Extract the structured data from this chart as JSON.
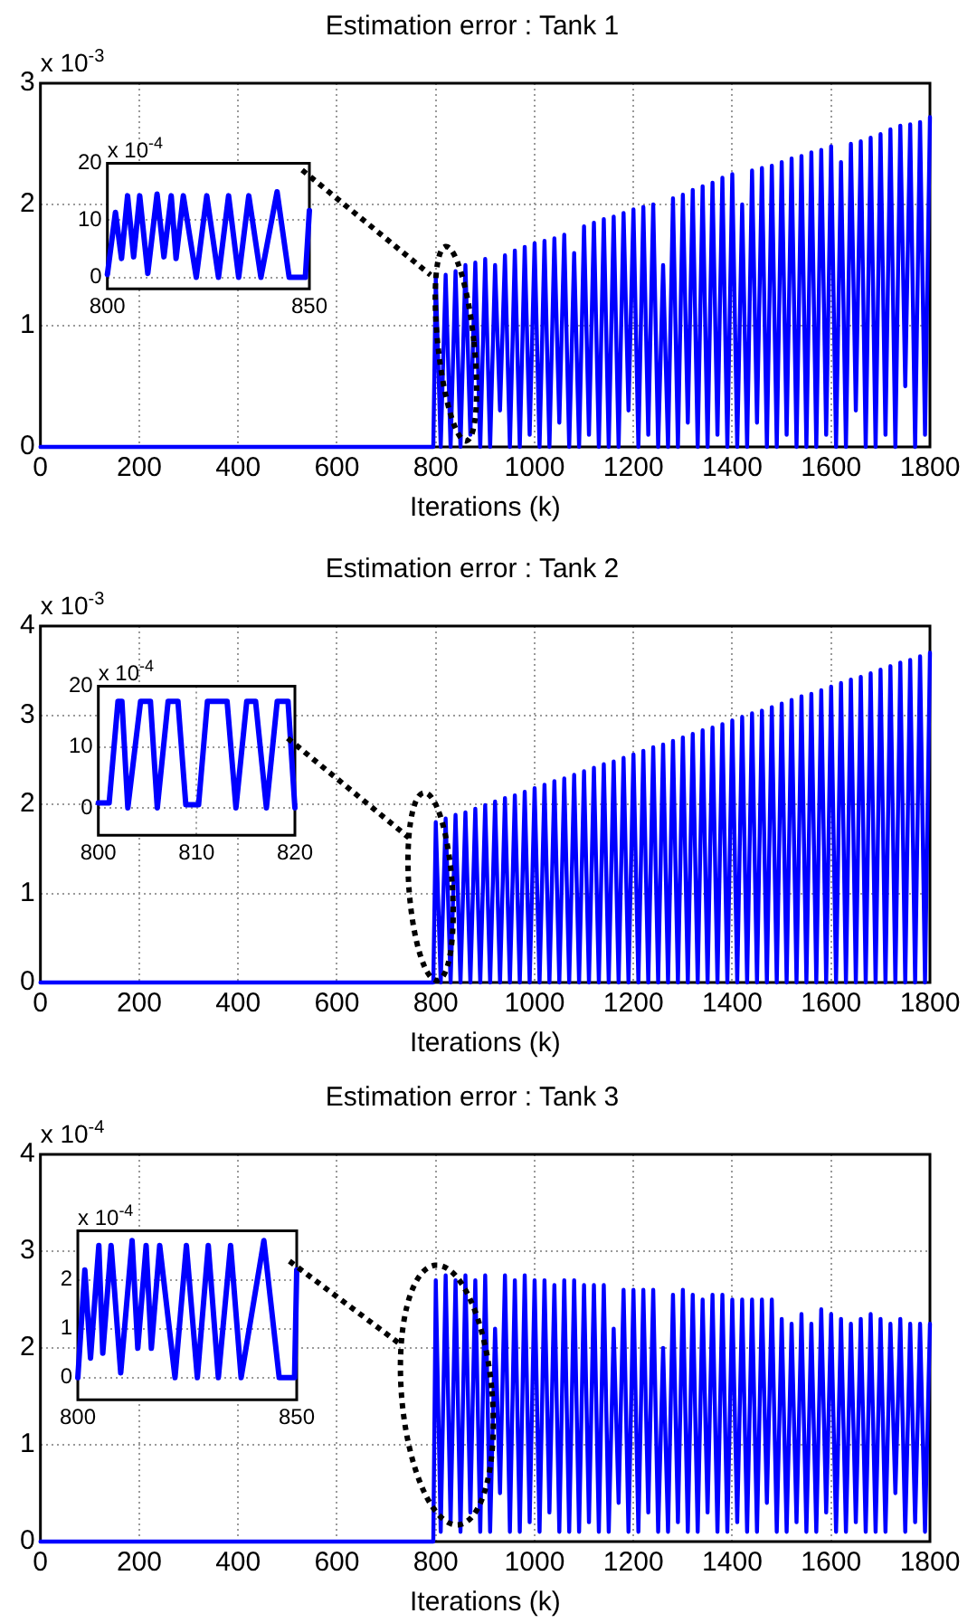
{
  "chart_data": [
    {
      "type": "line",
      "title": "Estimation error : Tank 1",
      "xlabel": "Iterations (k)",
      "annotations": [
        "x 10$^{-3}$"
      ],
      "xlim": [
        0,
        1800
      ],
      "xticks": [
        0,
        200,
        400,
        600,
        800,
        1000,
        1200,
        1400,
        1600,
        1800
      ],
      "ylim": [
        0,
        3
      ],
      "yticks": [
        0,
        1,
        2,
        3
      ],
      "grid": true,
      "x": [
        0,
        795,
        800,
        810,
        820,
        830,
        840,
        850,
        860,
        870,
        880,
        890,
        900,
        910,
        920,
        930,
        940,
        950,
        960,
        970,
        980,
        990,
        1000,
        1010,
        1020,
        1030,
        1040,
        1050,
        1060,
        1070,
        1080,
        1090,
        1100,
        1110,
        1120,
        1130,
        1140,
        1150,
        1160,
        1170,
        1180,
        1190,
        1200,
        1210,
        1220,
        1230,
        1240,
        1250,
        1260,
        1270,
        1280,
        1290,
        1300,
        1310,
        1320,
        1330,
        1340,
        1350,
        1360,
        1370,
        1380,
        1390,
        1400,
        1410,
        1420,
        1430,
        1440,
        1450,
        1460,
        1470,
        1480,
        1490,
        1500,
        1510,
        1520,
        1530,
        1540,
        1550,
        1560,
        1570,
        1580,
        1590,
        1600,
        1610,
        1620,
        1630,
        1640,
        1650,
        1660,
        1670,
        1680,
        1690,
        1700,
        1710,
        1720,
        1730,
        1740,
        1750,
        1760,
        1770,
        1780,
        1790,
        1800
      ],
      "series": [
        {
          "color": "#0000ff",
          "values": [
            0,
            0,
            1.4,
            0,
            1.42,
            0,
            1.45,
            0,
            1.5,
            0.1,
            1.52,
            0,
            1.55,
            0,
            1.5,
            0.3,
            1.58,
            0,
            1.62,
            0,
            1.65,
            0.1,
            1.68,
            0,
            1.7,
            0,
            1.72,
            0.2,
            1.75,
            0,
            1.6,
            0,
            1.82,
            0.1,
            1.85,
            0,
            1.88,
            0,
            1.9,
            0,
            1.93,
            0.3,
            1.96,
            0,
            1.98,
            0.1,
            2,
            0,
            1.5,
            0,
            2.05,
            0,
            2.08,
            0.2,
            2.12,
            0,
            2.15,
            0,
            2.18,
            0.1,
            2.22,
            0,
            2.25,
            0,
            2,
            0,
            2.28,
            0.2,
            2.3,
            0,
            2.32,
            0,
            2.35,
            0.1,
            2.38,
            0,
            2.4,
            0,
            2.43,
            0,
            2.45,
            0.1,
            2.48,
            0,
            2.35,
            0,
            2.5,
            0.3,
            2.52,
            0,
            2.55,
            0,
            2.58,
            0.1,
            2.62,
            0,
            2.65,
            0.5,
            2.66,
            0,
            2.68,
            0.1,
            2.72
          ]
        }
      ]
    },
    {
      "type": "line",
      "annotations": [
        "x 10$^{-4}$"
      ],
      "xlim": [
        800,
        850
      ],
      "xticks": [
        800,
        850
      ],
      "ylim": [
        -2,
        20
      ],
      "yticks": [
        0,
        10,
        20
      ],
      "grid": true,
      "x": [
        800,
        802,
        803.5,
        805,
        806.5,
        808,
        810,
        812.3,
        814,
        815.8,
        817,
        818.8,
        822,
        824.6,
        827.5,
        830,
        832.5,
        835,
        838,
        842,
        845,
        849,
        850
      ],
      "series": [
        {
          "color": "#0000ff",
          "values": [
            0.5,
            11.4,
            3.3,
            14.3,
            3.6,
            14.3,
            0.7,
            14.6,
            3.6,
            14.3,
            3.3,
            14.3,
            0,
            14.3,
            0,
            14.3,
            0,
            14.3,
            0,
            15,
            0,
            0,
            11.7
          ]
        }
      ]
    },
    {
      "type": "line",
      "title": "Estimation error : Tank 2",
      "xlabel": "Iterations (k)",
      "annotations": [
        "x 10$^{-3}$"
      ],
      "xlim": [
        0,
        1800
      ],
      "xticks": [
        0,
        200,
        400,
        600,
        800,
        1000,
        1200,
        1400,
        1600,
        1800
      ],
      "ylim": [
        0,
        4
      ],
      "yticks": [
        0,
        1,
        2,
        3,
        4
      ],
      "grid": true,
      "x": [
        0,
        795,
        800,
        810,
        820,
        830,
        840,
        850,
        860,
        870,
        880,
        890,
        900,
        910,
        920,
        930,
        940,
        950,
        960,
        970,
        980,
        990,
        1000,
        1010,
        1020,
        1030,
        1040,
        1050,
        1060,
        1070,
        1080,
        1090,
        1100,
        1110,
        1120,
        1130,
        1140,
        1150,
        1160,
        1170,
        1180,
        1190,
        1200,
        1210,
        1220,
        1230,
        1240,
        1250,
        1260,
        1270,
        1280,
        1290,
        1300,
        1310,
        1320,
        1330,
        1340,
        1350,
        1360,
        1370,
        1380,
        1390,
        1400,
        1410,
        1420,
        1430,
        1440,
        1450,
        1460,
        1470,
        1480,
        1490,
        1500,
        1510,
        1520,
        1530,
        1540,
        1550,
        1560,
        1570,
        1580,
        1590,
        1600,
        1610,
        1620,
        1630,
        1640,
        1650,
        1660,
        1670,
        1680,
        1690,
        1700,
        1710,
        1720,
        1730,
        1740,
        1750,
        1760,
        1770,
        1780,
        1790,
        1800
      ],
      "series": [
        {
          "color": "#0000ff",
          "values": [
            0,
            0,
            1.8,
            0,
            1.84,
            0,
            1.88,
            0,
            1.91,
            0,
            1.95,
            0,
            1.99,
            0,
            2.03,
            0,
            2.07,
            0,
            2.1,
            0,
            2.14,
            0,
            2.18,
            0,
            2.22,
            0,
            2.26,
            0,
            2.29,
            0,
            2.33,
            0,
            2.37,
            0,
            2.41,
            0,
            2.45,
            0,
            2.48,
            0,
            2.52,
            0,
            2.56,
            0,
            2.6,
            0,
            2.64,
            0,
            2.67,
            0,
            2.71,
            0,
            2.75,
            0,
            2.79,
            0,
            2.83,
            0,
            2.86,
            0,
            2.9,
            0,
            2.94,
            0,
            2.98,
            0,
            3.02,
            0,
            3.05,
            0,
            3.09,
            0,
            3.13,
            0,
            3.17,
            0,
            3.21,
            0,
            3.24,
            0,
            3.28,
            0,
            3.32,
            0,
            3.36,
            0,
            3.4,
            0,
            3.43,
            0,
            3.47,
            0,
            3.51,
            0,
            3.55,
            0,
            3.59,
            0,
            3.62,
            0,
            3.66,
            0,
            3.7
          ]
        }
      ]
    },
    {
      "type": "line",
      "annotations": [
        "x 10$^{-4}$"
      ],
      "xlim": [
        800,
        820
      ],
      "xticks": [
        800,
        810,
        820
      ],
      "ylim": [
        -4.5,
        20
      ],
      "yticks": [
        0,
        10,
        20
      ],
      "grid": true,
      "x": [
        800,
        801.1,
        802,
        802.4,
        803,
        804.3,
        805.3,
        806,
        807.1,
        808.1,
        808.9,
        810.2,
        811.1,
        813.1,
        814,
        815.1,
        816,
        817.1,
        818.2,
        819.3,
        820
      ],
      "series": [
        {
          "color": "#0000ff",
          "values": [
            0.8,
            0.8,
            17.5,
            17.5,
            0,
            17.5,
            17.5,
            0,
            17.5,
            17.5,
            0.5,
            0.5,
            17.5,
            17.5,
            0,
            17.5,
            17.5,
            0,
            17.5,
            17.5,
            0
          ]
        }
      ]
    },
    {
      "type": "line",
      "title": "Estimation error : Tank 3",
      "xlabel": "Iterations (k)",
      "annotations": [
        "x 10$^{-4}$"
      ],
      "xlim": [
        0,
        1800
      ],
      "xticks": [
        0,
        200,
        400,
        600,
        800,
        1000,
        1200,
        1400,
        1600,
        1800
      ],
      "ylim": [
        0,
        4
      ],
      "yticks": [
        0,
        1,
        2,
        3,
        4
      ],
      "grid": true,
      "x": [
        0,
        795,
        800,
        810,
        820,
        830,
        840,
        850,
        860,
        870,
        880,
        890,
        900,
        910,
        920,
        930,
        940,
        950,
        960,
        970,
        980,
        990,
        1000,
        1010,
        1020,
        1030,
        1040,
        1050,
        1060,
        1070,
        1080,
        1090,
        1100,
        1110,
        1120,
        1130,
        1140,
        1150,
        1160,
        1170,
        1180,
        1190,
        1200,
        1210,
        1220,
        1230,
        1240,
        1250,
        1260,
        1270,
        1280,
        1290,
        1300,
        1310,
        1320,
        1330,
        1340,
        1350,
        1360,
        1370,
        1380,
        1390,
        1400,
        1410,
        1420,
        1430,
        1440,
        1450,
        1460,
        1470,
        1480,
        1490,
        1500,
        1510,
        1520,
        1530,
        1540,
        1550,
        1560,
        1570,
        1580,
        1590,
        1600,
        1610,
        1620,
        1630,
        1640,
        1650,
        1660,
        1670,
        1680,
        1690,
        1700,
        1710,
        1720,
        1730,
        1740,
        1750,
        1760,
        1770,
        1780,
        1790,
        1800
      ],
      "series": [
        {
          "color": "#0000ff",
          "values": [
            0,
            0,
            2.7,
            0.1,
            2.75,
            0.2,
            2.7,
            0.1,
            2.75,
            0.3,
            2.7,
            0.1,
            2.75,
            0.1,
            2.2,
            0.5,
            2.75,
            0.1,
            2.7,
            0.1,
            2.75,
            0.2,
            2.7,
            0.1,
            2.7,
            0.3,
            2.65,
            0.1,
            2.7,
            0.1,
            2.7,
            0.1,
            2.65,
            0.2,
            2.65,
            0.1,
            2.65,
            0.1,
            2.2,
            0.4,
            2.6,
            0.1,
            2.6,
            0.1,
            2.6,
            0.3,
            2.6,
            0.1,
            2,
            0.1,
            2.55,
            0.2,
            2.6,
            0.1,
            2.55,
            0.1,
            2.5,
            0.3,
            2.55,
            0.1,
            2.55,
            0.1,
            2.5,
            0.2,
            2.5,
            0.1,
            2.5,
            0.1,
            2.5,
            0.4,
            2.5,
            0.1,
            2.3,
            0.1,
            2.25,
            0.2,
            2.35,
            0.1,
            2.25,
            0.1,
            2.4,
            0.3,
            2.35,
            0.1,
            2.3,
            0.1,
            2.25,
            0.2,
            2.3,
            0.1,
            2.35,
            0.1,
            2.3,
            0.1,
            2.25,
            0.5,
            2.3,
            0.1,
            2.25,
            0.2,
            2.25,
            0.1,
            2.25
          ]
        }
      ]
    },
    {
      "type": "line",
      "annotations": [
        "x 10$^{-4}$"
      ],
      "xlim": [
        800,
        850
      ],
      "xticks": [
        800,
        850
      ],
      "ylim": [
        -0.45,
        3
      ],
      "yticks": [
        0,
        1,
        2
      ],
      "grid": true,
      "x": [
        800,
        801.6,
        802.9,
        804.8,
        805.7,
        807.6,
        809.8,
        812.4,
        813.7,
        815.6,
        816.8,
        818.7,
        822.2,
        824.8,
        827.3,
        829.8,
        832.1,
        834.9,
        837.3,
        842.5,
        846,
        849.5,
        850
      ],
      "series": [
        {
          "color": "#0000ff",
          "values": [
            0,
            2.2,
            0.4,
            2.7,
            0.5,
            2.7,
            0.1,
            2.8,
            0.6,
            2.7,
            0.6,
            2.7,
            0,
            2.7,
            0,
            2.7,
            0,
            2.7,
            0,
            2.8,
            0,
            0,
            2.2
          ]
        }
      ]
    }
  ]
}
